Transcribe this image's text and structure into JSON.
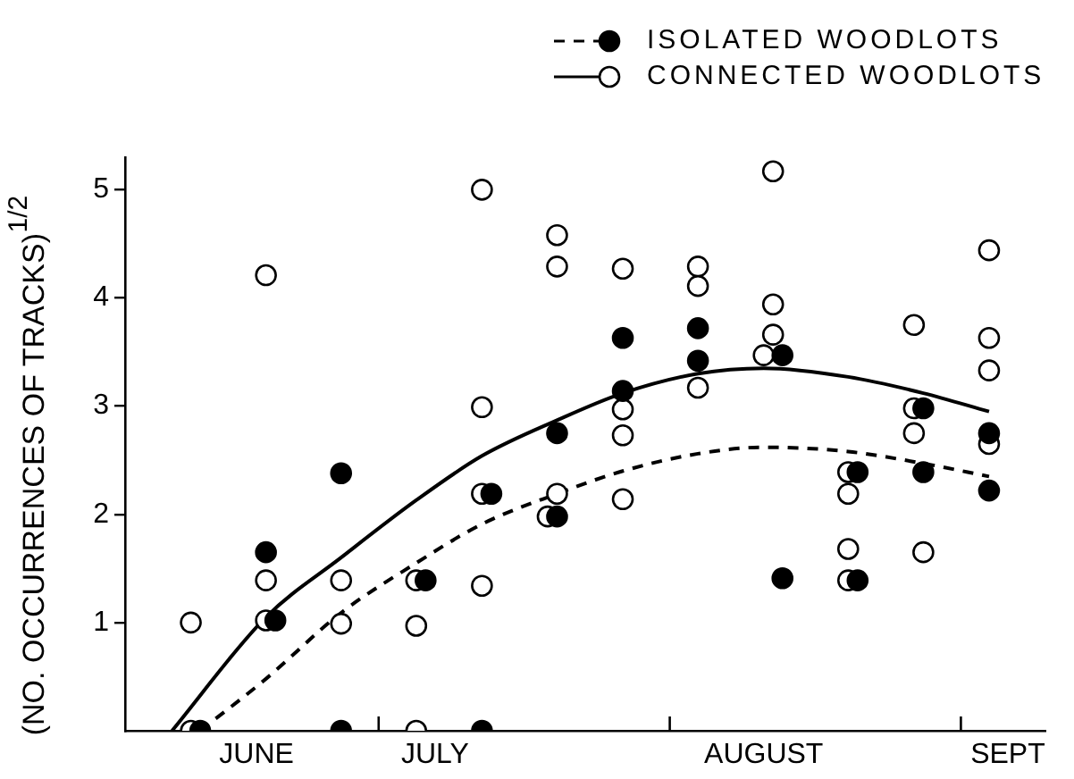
{
  "chart_data": {
    "type": "scatter",
    "ylabel": "(NO. OCCURRENCES OF TRACKS)$^{1/2}$",
    "xlim": [
      "--06-04",
      "--09-10"
    ],
    "xticks": [
      {
        "value": "--06-18",
        "label": "JUNE"
      },
      {
        "value": "--07-01",
        "label": null
      },
      {
        "value": "--07-07",
        "label": "JULY"
      },
      {
        "value": "--08-01",
        "label": null
      },
      {
        "value": "--08-11",
        "label": "AUGUST"
      },
      {
        "value": "--09-01",
        "label": null
      },
      {
        "value": "--09-06",
        "label": "SEPT"
      }
    ],
    "ylim": [
      0,
      5.3
    ],
    "yticks": [
      1,
      2,
      3,
      4,
      5
    ],
    "legend": "top right",
    "grid": false,
    "series": [
      {
        "name": "ISOLATED WOODLOTS",
        "type": "scatter",
        "marker": "circle",
        "color": "#000000",
        "x": [
          "--06-12",
          "--06-19",
          "--06-20",
          "--06-27",
          "--06-27",
          "--07-06",
          "--07-13",
          "--07-12",
          "--07-20",
          "--07-20",
          "--07-27",
          "--07-27",
          "--08-04",
          "--08-04",
          "--08-13",
          "--08-13",
          "--08-21",
          "--08-21",
          "--08-28",
          "--08-28",
          "--09-04",
          "--09-04"
        ],
        "values": [
          0,
          1.65,
          1.02,
          2.38,
          0,
          1.39,
          2.19,
          0,
          2.75,
          1.98,
          3.63,
          3.14,
          3.72,
          3.42,
          3.47,
          1.41,
          2.39,
          1.39,
          2.98,
          2.39,
          2.75,
          2.22
        ]
      },
      {
        "name": "CONNECTED WOODLOTS",
        "type": "scatter",
        "marker": "circle",
        "color": "#ffffff",
        "x": [
          "--06-11",
          "--06-11",
          "--06-19",
          "--06-19",
          "--06-19",
          "--06-27",
          "--06-27",
          "--07-05",
          "--07-05",
          "--07-05",
          "--07-12",
          "--07-12",
          "--07-12",
          "--07-12",
          "--07-20",
          "--07-20",
          "--07-20",
          "--07-19",
          "--07-27",
          "--07-27",
          "--07-27",
          "--07-27",
          "--08-04",
          "--08-04",
          "--08-04",
          "--08-12",
          "--08-12",
          "--08-12",
          "--08-11",
          "--08-20",
          "--08-20",
          "--08-20",
          "--08-20",
          "--08-27",
          "--08-27",
          "--08-27",
          "--08-28",
          "--09-04",
          "--09-04",
          "--09-04",
          "--09-04"
        ],
        "values": [
          1.0,
          0,
          4.21,
          1.39,
          1.02,
          1.39,
          0.99,
          1.39,
          0.97,
          0,
          5.0,
          2.99,
          2.19,
          1.34,
          4.58,
          4.29,
          2.19,
          1.98,
          4.27,
          2.97,
          2.73,
          2.14,
          4.29,
          4.11,
          3.17,
          5.17,
          3.94,
          3.66,
          3.47,
          2.39,
          2.19,
          1.68,
          1.39,
          3.75,
          2.98,
          2.75,
          1.65,
          4.44,
          3.63,
          3.33,
          2.65
        ]
      },
      {
        "type": "line",
        "marker": "none",
        "line_style": "dashed",
        "color": "#000000",
        "x": [
          "--06-12",
          "--06-19",
          "--06-27",
          "--07-05",
          "--07-12",
          "--07-20",
          "--07-27",
          "--08-04",
          "--08-11",
          "--08-20",
          "--08-28",
          "--09-04"
        ],
        "values": [
          0,
          0.48,
          1.09,
          1.55,
          1.91,
          2.19,
          2.4,
          2.56,
          2.62,
          2.58,
          2.47,
          2.35
        ]
      },
      {
        "type": "line",
        "marker": "none",
        "line_style": "solid",
        "color": "#000000",
        "x": [
          "--06-09",
          "--06-19",
          "--06-27",
          "--07-05",
          "--07-12",
          "--07-20",
          "--07-27",
          "--08-04",
          "--08-11",
          "--08-20",
          "--08-28",
          "--09-04"
        ],
        "values": [
          0,
          1.05,
          1.6,
          2.13,
          2.54,
          2.87,
          3.12,
          3.3,
          3.35,
          3.27,
          3.12,
          2.95
        ]
      }
    ]
  }
}
